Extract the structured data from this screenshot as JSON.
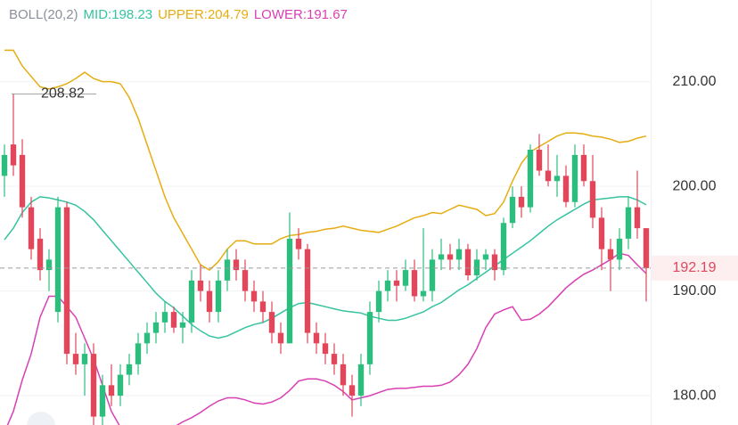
{
  "chart_data": {
    "type": "candlestick",
    "legend": [
      {
        "label": "BOLL(20,2)",
        "color": "#8a8f99"
      },
      {
        "label": "MID:198.23",
        "color": "#35c3a0"
      },
      {
        "label": "UPPER:204.79",
        "color": "#e6ad12"
      },
      {
        "label": "LOWER:191.67",
        "color": "#d93fb5"
      }
    ],
    "ylim": [
      177.2,
      217.8
    ],
    "yticks": [
      {
        "value": 180,
        "label": "180.00"
      },
      {
        "value": 190,
        "label": "190.00"
      },
      {
        "value": 200,
        "label": "200.00"
      },
      {
        "value": 210,
        "label": "210.00"
      }
    ],
    "grid": true,
    "up_color": "#2dbd7e",
    "down_color": "#e0475a",
    "last_price": 192.19,
    "candles": [
      [
        201,
        204,
        199,
        203
      ],
      [
        204,
        208.82,
        201,
        202
      ],
      [
        203,
        204.5,
        197,
        198
      ],
      [
        198,
        199,
        193,
        194
      ],
      [
        195,
        196,
        191,
        192
      ],
      [
        192,
        194,
        190,
        193
      ],
      [
        188,
        199,
        187,
        198
      ],
      [
        198,
        198.5,
        183,
        184
      ],
      [
        184,
        186,
        182,
        183
      ],
      [
        183,
        185,
        180,
        184
      ],
      [
        184,
        185,
        177,
        178
      ],
      [
        178,
        182,
        177,
        181
      ],
      [
        181,
        183,
        179,
        180
      ],
      [
        180,
        183,
        179,
        182
      ],
      [
        182,
        184,
        181,
        183
      ],
      [
        183,
        186,
        182,
        185
      ],
      [
        185,
        187,
        184,
        186
      ],
      [
        186,
        188,
        185,
        187
      ],
      [
        187,
        189,
        186,
        188
      ],
      [
        188,
        188.5,
        186,
        186.5
      ],
      [
        186.5,
        188,
        185,
        187
      ],
      [
        187,
        192,
        186,
        191
      ],
      [
        191,
        192.5,
        189,
        190
      ],
      [
        190,
        191,
        187,
        188
      ],
      [
        188,
        192,
        187,
        191
      ],
      [
        191,
        194,
        190,
        193
      ],
      [
        193,
        194,
        191,
        192
      ],
      [
        192,
        193,
        189,
        190
      ],
      [
        190,
        191,
        188,
        189
      ],
      [
        189,
        190,
        187,
        188
      ],
      [
        188,
        189,
        185,
        186
      ],
      [
        186,
        187,
        184,
        185
      ],
      [
        185,
        197.5,
        185,
        195
      ],
      [
        195,
        196,
        193,
        194
      ],
      [
        194,
        194.5,
        185,
        186
      ],
      [
        186,
        187,
        184,
        185
      ],
      [
        185,
        186,
        183,
        184
      ],
      [
        184,
        185,
        182,
        183
      ],
      [
        183,
        184,
        180,
        181
      ],
      [
        181,
        182,
        178,
        180
      ],
      [
        180,
        184,
        179,
        183
      ],
      [
        183,
        189,
        182,
        188
      ],
      [
        188,
        191,
        187,
        190
      ],
      [
        190,
        192,
        189,
        191
      ],
      [
        191,
        192,
        189,
        190.5
      ],
      [
        190.5,
        193,
        190,
        192
      ],
      [
        192,
        193,
        189,
        189.5
      ],
      [
        189.5,
        196,
        189,
        190
      ],
      [
        190,
        194,
        189,
        193
      ],
      [
        193,
        195,
        192,
        193.5
      ],
      [
        193.5,
        194.5,
        192,
        193
      ],
      [
        193,
        195,
        192,
        194
      ],
      [
        194,
        194.5,
        191,
        191.5
      ],
      [
        191.5,
        194,
        191,
        193
      ],
      [
        193,
        194,
        192,
        193.5
      ],
      [
        193.5,
        194,
        191,
        192
      ],
      [
        192,
        197,
        191.5,
        196.5
      ],
      [
        196.5,
        200,
        196,
        199
      ],
      [
        199,
        200,
        197,
        198
      ],
      [
        198,
        204,
        197.5,
        203.5
      ],
      [
        203.5,
        205,
        201,
        201.5
      ],
      [
        201.5,
        204,
        200,
        200.5
      ],
      [
        200.5,
        203,
        199,
        201
      ],
      [
        201,
        202,
        198,
        198.5
      ],
      [
        198.5,
        204,
        198,
        203
      ],
      [
        203,
        204,
        200,
        200.5
      ],
      [
        200.5,
        203,
        196,
        197
      ],
      [
        197,
        198,
        192,
        194
      ],
      [
        194,
        195,
        190,
        193
      ],
      [
        193,
        196,
        192,
        195
      ],
      [
        195,
        199,
        194,
        198
      ],
      [
        198,
        201.5,
        195,
        196
      ],
      [
        196,
        196,
        189,
        192.19
      ]
    ],
    "series": [
      {
        "color": "#e6ad12",
        "values": [
          213,
          213,
          211.5,
          210.5,
          209.5,
          209.3,
          209.5,
          209.8,
          210.3,
          210.9,
          210.3,
          210,
          210,
          209.8,
          208.5,
          206.5,
          204,
          201.5,
          199,
          197,
          195.5,
          194,
          192.5,
          192,
          192.8,
          194,
          194.8,
          194.8,
          194.5,
          194.5,
          194.5,
          195,
          195.3,
          195.4,
          195.6,
          195.7,
          195.9,
          196,
          196.2,
          196,
          195.8,
          195.7,
          195.6,
          195.9,
          196.2,
          196.6,
          197,
          197.2,
          197.5,
          197.4,
          197.8,
          198.2,
          198,
          197.8,
          197.2,
          197.4,
          198.5,
          200.5,
          202.2,
          203.3,
          203.8,
          204.3,
          204.8,
          205.1,
          205.1,
          205,
          204.8,
          204.7,
          204.5,
          204.2,
          204.3,
          204.6,
          204.8
        ]
      },
      {
        "color": "#35c3a0",
        "values": [
          194.9,
          196,
          197.5,
          198.5,
          199,
          198.9,
          198.7,
          198.5,
          198.2,
          197.6,
          196.8,
          195.8,
          194.8,
          193.8,
          192.8,
          191.8,
          190.8,
          189.8,
          189,
          188.4,
          187.6,
          186.8,
          186.2,
          185.7,
          185.5,
          185.7,
          186.1,
          186.5,
          186.8,
          187,
          187.4,
          187.9,
          188.4,
          188.8,
          188.9,
          188.7,
          188.5,
          188.3,
          188.1,
          188,
          187.9,
          187.6,
          187.4,
          187.2,
          187.2,
          187.4,
          187.7,
          188,
          188.5,
          188.9,
          189.5,
          190.1,
          190.6,
          191.2,
          191.8,
          192.4,
          193,
          193.6,
          194.2,
          194.8,
          195.5,
          196.2,
          196.8,
          197.3,
          197.8,
          198.3,
          198.7,
          198.8,
          198.9,
          199,
          199,
          198.7,
          198.23
        ]
      },
      {
        "color": "#d93fb5",
        "values": [
          176.5,
          178.5,
          181.5,
          184,
          187.5,
          189.5,
          189.5,
          188.5,
          187.5,
          185.5,
          183.5,
          181,
          178.5,
          177,
          176.5,
          176,
          176,
          176.3,
          176.8,
          177,
          177.5,
          177.9,
          178.4,
          179,
          179.5,
          179.8,
          179.8,
          179.6,
          179.3,
          179.2,
          179.4,
          179.8,
          180.5,
          181.4,
          181.6,
          181.6,
          181.4,
          181,
          180.4,
          179.6,
          179.8,
          180,
          180.3,
          180.6,
          180.7,
          180.7,
          180.8,
          180.9,
          180.9,
          181,
          181.3,
          182,
          183,
          184.5,
          186.5,
          187.8,
          188.2,
          188.5,
          187.2,
          187.3,
          187.8,
          188.5,
          189.4,
          190.3,
          191,
          191.6,
          192,
          192.5,
          193,
          193.6,
          193.4,
          192.5,
          191.67
        ]
      }
    ]
  }
}
